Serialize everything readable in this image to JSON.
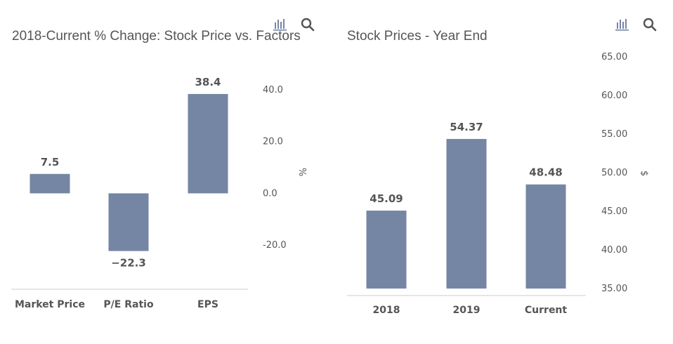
{
  "toolbar": {
    "chart_type_icon": "bar-chart-icon",
    "zoom_icon": "search-icon"
  },
  "colors": {
    "bar": "#7486a4",
    "axis_line": "#d8d8d8",
    "text": "#555555",
    "title": "#555555"
  },
  "chart_data": [
    {
      "type": "bar",
      "title": "2018-Current % Change: Stock Price vs. Factors",
      "categories": [
        "Market Price",
        "P/E Ratio",
        "EPS"
      ],
      "values": [
        7.5,
        -22.3,
        38.4
      ],
      "value_labels": [
        "7.5",
        "−22.3",
        "38.4"
      ],
      "xlabel": "",
      "ylabel": "%",
      "ylim": [
        -30,
        40
      ],
      "yticks": [
        40,
        20,
        0,
        -20
      ],
      "ytick_labels": [
        "40.0",
        "20.0",
        "0.0",
        "-20.0"
      ],
      "y_axis_position": "right",
      "grid": false,
      "legend": "none"
    },
    {
      "type": "bar",
      "title": "Stock Prices - Year End",
      "categories": [
        "2018",
        "2019",
        "Current"
      ],
      "values": [
        45.09,
        54.37,
        48.48
      ],
      "value_labels": [
        "45.09",
        "54.37",
        "48.48"
      ],
      "xlabel": "",
      "ylabel": "$",
      "ylim": [
        35,
        65
      ],
      "yticks": [
        65,
        60,
        55,
        50,
        45,
        40,
        35
      ],
      "ytick_labels": [
        "65.00",
        "60.00",
        "55.00",
        "50.00",
        "45.00",
        "40.00",
        "35.00"
      ],
      "y_axis_position": "right",
      "grid": false,
      "legend": "none"
    }
  ]
}
